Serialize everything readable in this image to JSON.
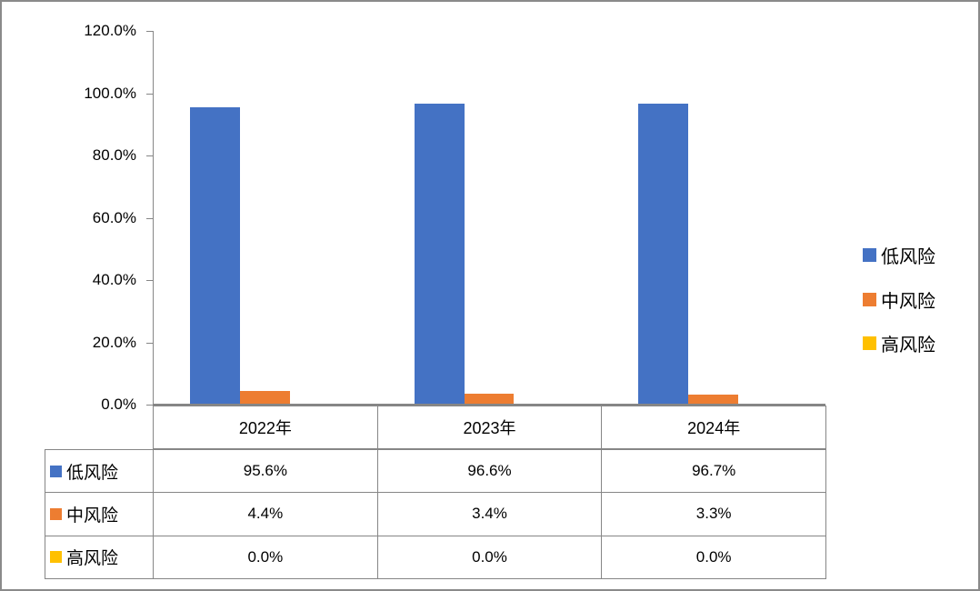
{
  "chart_data": {
    "type": "bar",
    "title": "",
    "xlabel": "",
    "ylabel": "",
    "categories": [
      "2022年",
      "2023年",
      "2024年"
    ],
    "series": [
      {
        "name": "低风险",
        "color": "#4472C4",
        "values": [
          95.6,
          96.6,
          96.7
        ]
      },
      {
        "name": "中风险",
        "color": "#ED7D31",
        "values": [
          4.4,
          3.4,
          3.3
        ]
      },
      {
        "name": "高风险",
        "color": "#FFC000",
        "values": [
          0.0,
          0.0,
          0.0
        ]
      }
    ],
    "ylim": [
      0,
      120
    ],
    "ytick_step": 20,
    "ytick_labels": [
      "120.0%",
      "100.0%",
      "80.0%",
      "60.0%",
      "40.0%",
      "20.0%",
      "0.0%"
    ],
    "grid": false,
    "legend_position": "right",
    "legend_items": [
      {
        "label": "低风险",
        "color": "#4472C4"
      },
      {
        "label": "中风险",
        "color": "#ED7D31"
      },
      {
        "label": "高风险",
        "color": "#FFC000"
      }
    ],
    "data_table": {
      "column_headers": [
        "2022年",
        "2023年",
        "2024年"
      ],
      "rows": [
        {
          "label": "低风险",
          "color": "#4472C4",
          "cells": [
            "95.6%",
            "96.6%",
            "96.7%"
          ]
        },
        {
          "label": "中风险",
          "color": "#ED7D31",
          "cells": [
            "4.4%",
            "3.4%",
            "3.3%"
          ]
        },
        {
          "label": "高风险",
          "color": "#FFC000",
          "cells": [
            "0.0%",
            "0.0%",
            "0.0%"
          ]
        }
      ]
    }
  },
  "colors": {
    "axis_line": "#868686",
    "table_border": "#868686",
    "frame_border": "#8a8a8a",
    "background": "#ffffff"
  }
}
